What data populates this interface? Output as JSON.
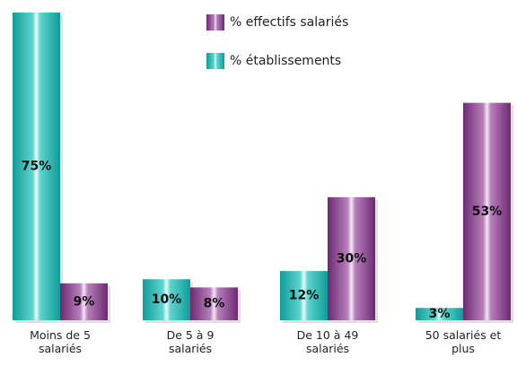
{
  "chart_data": {
    "type": "bar",
    "categories": [
      "Moins de 5\nsalariés",
      "De 5 à 9\nsalariés",
      "De 10 à 49\nsalariés",
      "50 salariés et\nplus"
    ],
    "series": [
      {
        "name": "% établissements",
        "color": "#1aa9a4",
        "values": [
          75,
          10,
          12,
          3
        ],
        "value_labels": [
          "75%",
          "10%",
          "12%",
          "3%"
        ]
      },
      {
        "name": "% effectifs salariés",
        "color": "#8e4a94",
        "values": [
          9,
          8,
          30,
          53
        ],
        "value_labels": [
          "9%",
          "8%",
          "30%",
          "53%"
        ]
      }
    ]
  }
}
